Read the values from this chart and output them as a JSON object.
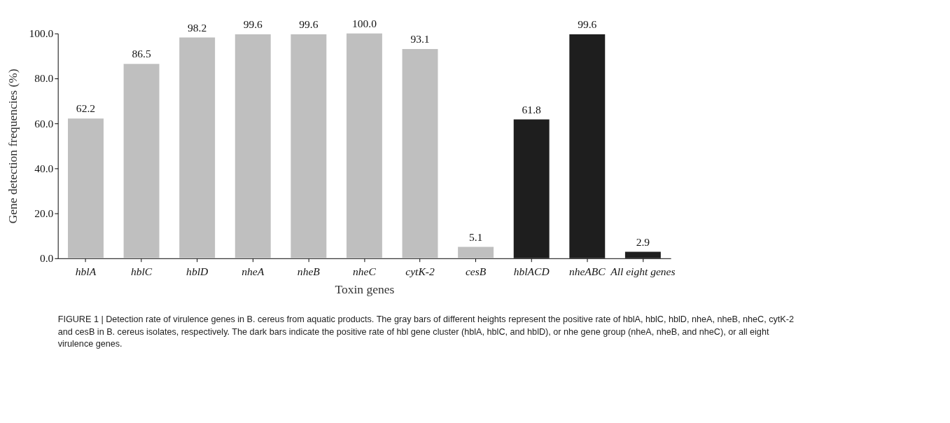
{
  "chart_data": {
    "type": "bar",
    "xlabel": "Toxin genes",
    "ylabel": "Gene detection frequencies (%)",
    "categories": [
      "hblA",
      "hblC",
      "hblD",
      "nheA",
      "nheB",
      "nheC",
      "cytK-2",
      "cesB",
      "hblACD",
      "nheABC",
      "All eight genes"
    ],
    "values": [
      62.2,
      86.5,
      98.2,
      99.6,
      99.6,
      100.0,
      93.1,
      5.1,
      61.8,
      99.6,
      2.9
    ],
    "value_labels": [
      "62.2",
      "86.5",
      "98.2",
      "99.6",
      "99.6",
      "100.0",
      "93.1",
      "5.1",
      "61.8",
      "99.6",
      "2.9"
    ],
    "colors": [
      "#bfbfbf",
      "#bfbfbf",
      "#bfbfbf",
      "#bfbfbf",
      "#bfbfbf",
      "#bfbfbf",
      "#bfbfbf",
      "#bfbfbf",
      "#1e1e1e",
      "#1e1e1e",
      "#1e1e1e"
    ],
    "ylim": [
      0,
      100
    ],
    "yticks": [
      {
        "value": 0,
        "label": "0.0"
      },
      {
        "value": 20,
        "label": "20.0"
      },
      {
        "value": 40,
        "label": "40.0"
      },
      {
        "value": 60,
        "label": "60.0"
      },
      {
        "value": 80,
        "label": "80.0"
      },
      {
        "value": 100,
        "label": "100.0"
      }
    ],
    "grid": false,
    "legend": false,
    "annotations": [
      "FIGURE 1 | Detection rate of virulence genes in B. cereus from aquatic products. The gray bars of different heights represent the positive rate of hblA, hblC, hblD, nheA, nheB, nheC, cytK-2 and cesB in B. cereus isolates, respectively. The dark bars indicate the positive rate of hbl gene cluster (hblA, hblC, and hblD), or nhe gene group (nheA, nheB, and nheC), or all eight virulence genes."
    ]
  }
}
